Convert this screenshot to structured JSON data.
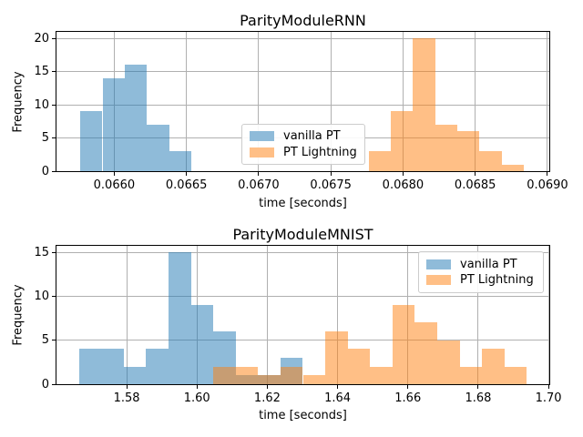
{
  "colors": {
    "blue_series": "#1f77b4",
    "orange_series": "#ff7f0e",
    "fill_alpha": 0.5,
    "blue_fill_on_white": "#8fbbd9",
    "orange_fill_on_white": "#ffbf86",
    "overlap_fill": "#c79d73",
    "grid": "#b0b0b0",
    "spine": "#000000",
    "legend_border": "#cccccc",
    "background": "#ffffff"
  },
  "legend": {
    "items": [
      {
        "label": "vanilla PT",
        "series": "blue"
      },
      {
        "label": "PT Lightning",
        "series": "orange"
      }
    ]
  },
  "chart_data": [
    {
      "type": "bar",
      "mode": "histogram",
      "title": "ParityModuleRNN",
      "xlabel": "time [seconds]",
      "ylabel": "Frequency",
      "xlim": [
        0.0656,
        0.069013
      ],
      "ylim": [
        0,
        21
      ],
      "grid": true,
      "legend_position": "center",
      "bin_width": 0.0001536,
      "xticks": {
        "values": [
          0.066,
          0.0665,
          0.067,
          0.0675,
          0.068,
          0.0685,
          0.069
        ],
        "labels": [
          "0.0660",
          "0.0665",
          "0.0670",
          "0.0675",
          "0.0680",
          "0.0685",
          "0.0690"
        ]
      },
      "yticks": {
        "values": [
          0,
          5,
          10,
          15,
          20
        ],
        "labels": [
          "0",
          "5",
          "10",
          "15",
          "20"
        ]
      },
      "series": [
        {
          "name": "vanilla PT",
          "color": "#1f77b4",
          "bin_start": 0.065765,
          "counts": [
            9,
            14,
            16,
            7,
            3
          ]
        },
        {
          "name": "PT Lightning",
          "color": "#ff7f0e",
          "bin_start": 0.0677618,
          "counts": [
            3,
            9,
            20,
            7,
            6,
            3,
            1
          ]
        }
      ]
    },
    {
      "type": "bar",
      "mode": "histogram",
      "title": "ParityModuleMNIST",
      "xlabel": "time [seconds]",
      "ylabel": "Frequency",
      "xlim": [
        1.560027,
        1.700233
      ],
      "ylim": [
        0,
        15.75
      ],
      "grid": true,
      "legend_position": "upper right",
      "bin_width": 0.006373,
      "xticks": {
        "values": [
          1.58,
          1.6,
          1.62,
          1.64,
          1.66,
          1.68,
          1.7
        ],
        "labels": [
          "1.58",
          "1.60",
          "1.62",
          "1.64",
          "1.66",
          "1.68",
          "1.70"
        ]
      },
      "yticks": {
        "values": [
          0,
          5,
          10,
          15
        ],
        "labels": [
          "0",
          "5",
          "10",
          "15"
        ]
      },
      "series": [
        {
          "name": "vanilla PT",
          "color": "#1f77b4",
          "bin_start": 1.5664,
          "counts": [
            4,
            4,
            2,
            4,
            15,
            9,
            6,
            1,
            1,
            3
          ]
        },
        {
          "name": "PT Lightning",
          "color": "#ff7f0e",
          "bin_start": 1.604638,
          "counts": [
            2,
            2,
            1,
            2,
            1,
            6,
            4,
            2,
            9,
            7,
            5,
            2,
            4,
            2
          ]
        }
      ]
    }
  ]
}
